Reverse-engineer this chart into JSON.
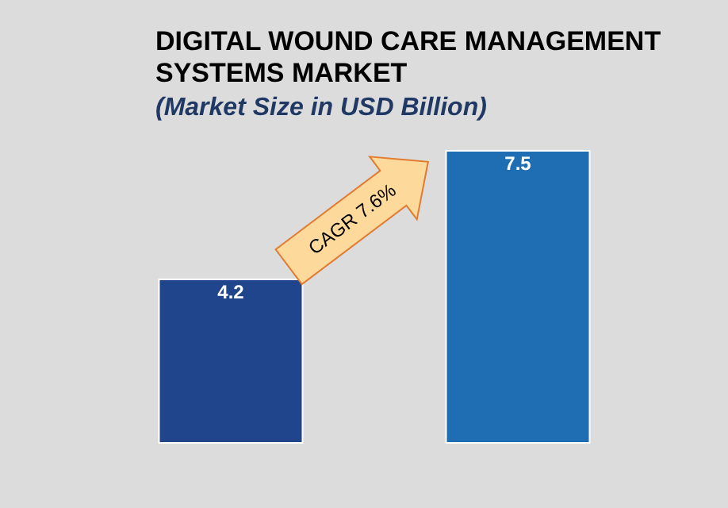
{
  "chart_data": {
    "type": "bar",
    "title": "DIGITAL WOUND CARE MANAGEMENT SYSTEMS MARKET",
    "subtitle": "(Market Size in USD Billion)",
    "categories": [
      null,
      null
    ],
    "values": [
      4.2,
      7.5
    ],
    "colors": [
      "#21458c",
      "#1f6db3"
    ],
    "data_labels": true,
    "annotations": [
      "CAGR 7.6%"
    ]
  }
}
